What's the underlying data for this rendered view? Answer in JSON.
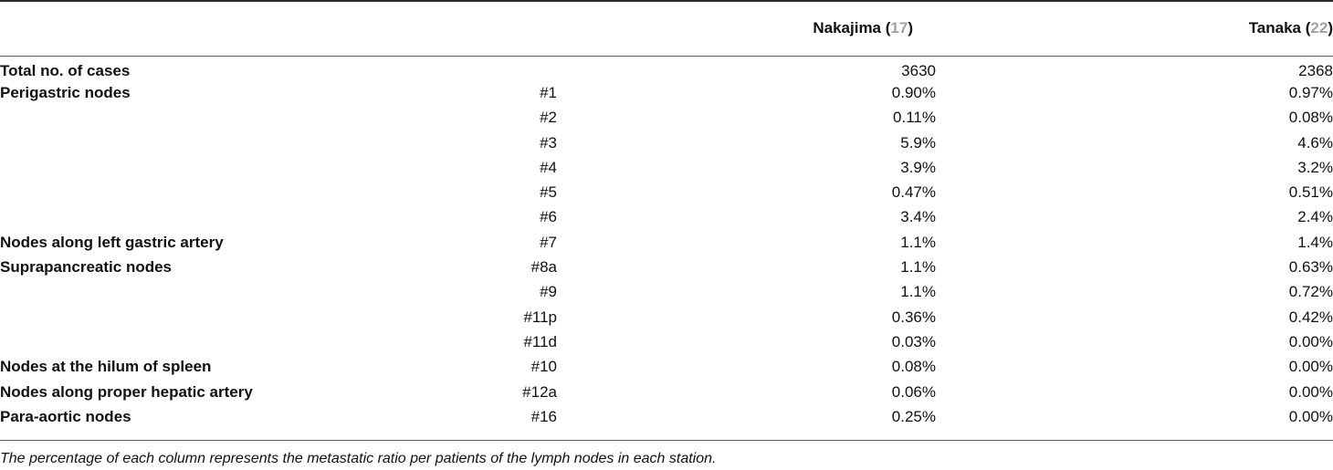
{
  "header": {
    "col_group": "",
    "col_station": "",
    "col_nakajima_name": "Nakajima (",
    "col_nakajima_ref": "17",
    "col_nakajima_close": ")",
    "col_tanaka_name": "Tanaka (",
    "col_tanaka_ref": "22",
    "col_tanaka_close": ")"
  },
  "rows": [
    {
      "group": "Total no. of cases",
      "station": "",
      "nakajima": "3630",
      "tanaka": "2368"
    },
    {
      "group": "Perigastric nodes",
      "station": "#1",
      "nakajima": "0.90%",
      "tanaka": "0.97%"
    },
    {
      "group": "",
      "station": "#2",
      "nakajima": "0.11%",
      "tanaka": "0.08%"
    },
    {
      "group": "",
      "station": "#3",
      "nakajima": "5.9%",
      "tanaka": "4.6%"
    },
    {
      "group": "",
      "station": "#4",
      "nakajima": "3.9%",
      "tanaka": "3.2%"
    },
    {
      "group": "",
      "station": "#5",
      "nakajima": "0.47%",
      "tanaka": "0.51%"
    },
    {
      "group": "",
      "station": "#6",
      "nakajima": "3.4%",
      "tanaka": "2.4%"
    },
    {
      "group": "Nodes along left gastric artery",
      "station": "#7",
      "nakajima": "1.1%",
      "tanaka": "1.4%"
    },
    {
      "group": "Suprapancreatic nodes",
      "station": "#8a",
      "nakajima": "1.1%",
      "tanaka": "0.63%"
    },
    {
      "group": "",
      "station": "#9",
      "nakajima": "1.1%",
      "tanaka": "0.72%"
    },
    {
      "group": "",
      "station": "#11p",
      "nakajima": "0.36%",
      "tanaka": "0.42%"
    },
    {
      "group": "",
      "station": "#11d",
      "nakajima": "0.03%",
      "tanaka": "0.00%"
    },
    {
      "group": "Nodes at the hilum of spleen",
      "station": "#10",
      "nakajima": "0.08%",
      "tanaka": "0.00%"
    },
    {
      "group": "Nodes along proper hepatic artery",
      "station": "#12a",
      "nakajima": "0.06%",
      "tanaka": "0.00%"
    },
    {
      "group": "Para-aortic nodes",
      "station": "#16",
      "nakajima": "0.25%",
      "tanaka": "0.00%"
    }
  ],
  "footnote": "The percentage of each column represents the metastatic ratio per patients of the lymph nodes in each station."
}
